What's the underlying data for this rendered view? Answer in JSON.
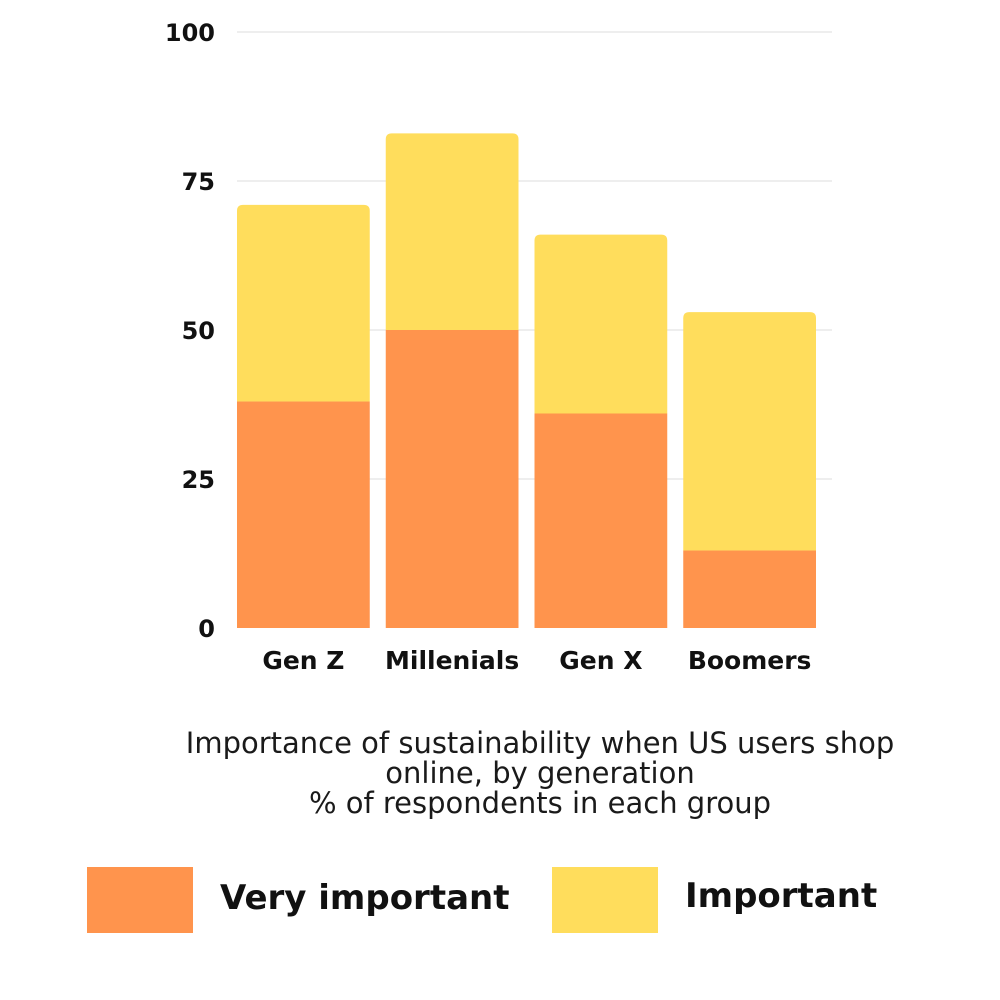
{
  "chart_data": {
    "type": "bar",
    "stacked": true,
    "categories": [
      "Gen Z",
      "Millenials",
      "Gen X",
      "Boomers"
    ],
    "series": [
      {
        "name": "Very important",
        "color": "#FF944D",
        "values": [
          38,
          50,
          36,
          13
        ]
      },
      {
        "name": "Important",
        "color": "#FFDD5C",
        "values": [
          33,
          33,
          30,
          40
        ]
      }
    ],
    "title_lines": [
      "Importance of sustainability when US users shop",
      "online, by generation",
      "% of respondents in each group"
    ],
    "yticks": [
      "0",
      "25",
      "50",
      "75",
      "100"
    ],
    "ylim": [
      0,
      100
    ],
    "grid": true,
    "legend_position": "bottom"
  }
}
